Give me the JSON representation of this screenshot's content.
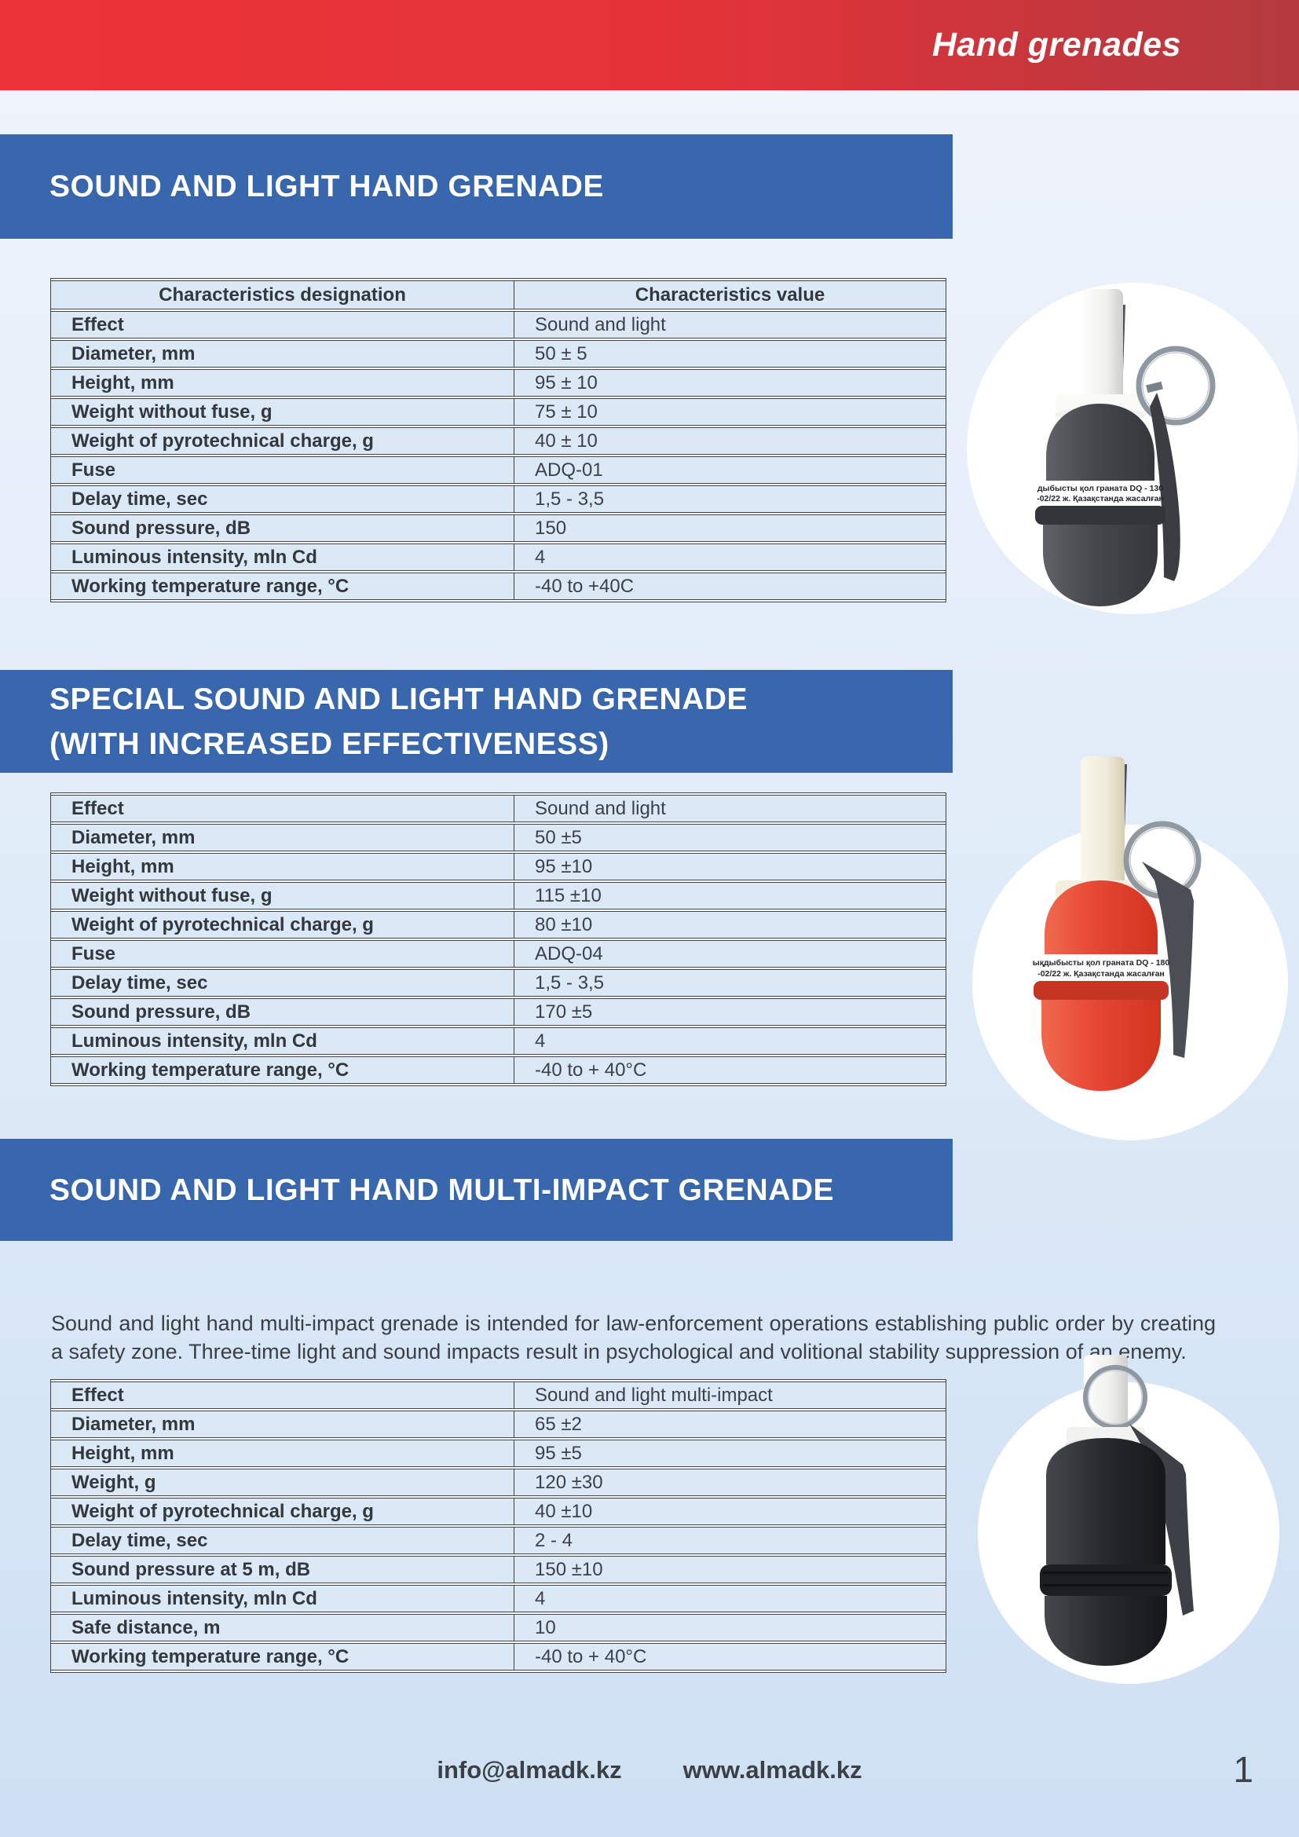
{
  "page": {
    "banner_title": "Hand grenades",
    "page_number": "1",
    "footer": {
      "email": "info@almadk.kz",
      "website": "www.almadk.kz"
    }
  },
  "colors": {
    "banner_red_left": "#ec3339",
    "banner_red_right": "#b43a3f",
    "section_bar_blue": "#3867ae",
    "table_cell_blue": "#dbe9f7",
    "table_border": "#3f444b",
    "page_bg_top": "#f1f5fc",
    "page_bg_bottom": "#cfe0f4",
    "grenade1_body": "#45474c",
    "grenade2_body": "#e64734",
    "grenade3_body": "#26282d"
  },
  "sections": [
    {
      "title_lines": [
        "SOUND AND LIGHT HAND GRENADE"
      ],
      "table": {
        "header": [
          "Characteristics designation",
          "Characteristics value"
        ],
        "rows": [
          [
            "Effect",
            "Sound and light"
          ],
          [
            "Diameter, mm",
            "50 ± 5"
          ],
          [
            "Height, mm",
            "95 ± 10"
          ],
          [
            "Weight without fuse, g",
            "75 ± 10"
          ],
          [
            "Weight of pyrotechnical charge, g",
            "40 ± 10"
          ],
          [
            "Fuse",
            "ADQ-01"
          ],
          [
            "Delay time, sec",
            "1,5 - 3,5"
          ],
          [
            "Sound pressure, dB",
            "150"
          ],
          [
            "Luminous intensity, mln Cd",
            "4"
          ],
          [
            "Working temperature range, °C",
            "-40 to +40C"
          ]
        ]
      },
      "image": {
        "label_lines": [
          "дыбысты қол граната DQ - 130",
          "-02/22 ж. Қазақстанда жасалған"
        ]
      }
    },
    {
      "title_lines": [
        "SPECIAL SOUND AND LIGHT HAND GRENADE",
        "(WITH INCREASED EFFECTIVENESS)"
      ],
      "table": {
        "rows": [
          [
            "Effect",
            "Sound and light"
          ],
          [
            "Diameter, mm",
            "50 ±5"
          ],
          [
            "Height, mm",
            "95 ±10"
          ],
          [
            "Weight without fuse, g",
            "115 ±10"
          ],
          [
            "Weight of pyrotechnical charge, g",
            "80 ±10"
          ],
          [
            "Fuse",
            "ADQ-04"
          ],
          [
            "Delay time, sec",
            "1,5 - 3,5"
          ],
          [
            "Sound pressure, dB",
            "170 ±5"
          ],
          [
            "Luminous intensity, mln Cd",
            "4"
          ],
          [
            "Working temperature range, °C",
            "-40 to + 40°C"
          ]
        ]
      },
      "image": {
        "label_lines": [
          "ықдыбысты қол граната DQ - 180",
          "-02/22 ж. Қазақстанда жасалған"
        ]
      }
    },
    {
      "title_lines": [
        "SOUND AND LIGHT HAND MULTI-IMPACT GRENADE"
      ],
      "description": "Sound and light hand multi-impact grenade is intended for law-enforcement operations establishing public order by creating a safety zone. Three-time light and sound impacts result in psychological and volitional stability suppression of an enemy.",
      "table": {
        "rows": [
          [
            "Effect",
            "Sound and light multi-impact"
          ],
          [
            "Diameter, mm",
            "65 ±2"
          ],
          [
            "Height, mm",
            "95 ±5"
          ],
          [
            "Weight, g",
            "120 ±30"
          ],
          [
            "Weight of pyrotechnical charge, g",
            "40 ±10"
          ],
          [
            "Delay time, sec",
            "2 - 4"
          ],
          [
            "Sound pressure at 5 m, dB",
            "150 ±10"
          ],
          [
            "Luminous intensity, mln Cd",
            "4"
          ],
          [
            "Safe distance, m",
            "10"
          ],
          [
            "Working temperature range, °C",
            "-40 to + 40°C"
          ]
        ]
      },
      "image": {
        "label_lines": []
      }
    }
  ]
}
